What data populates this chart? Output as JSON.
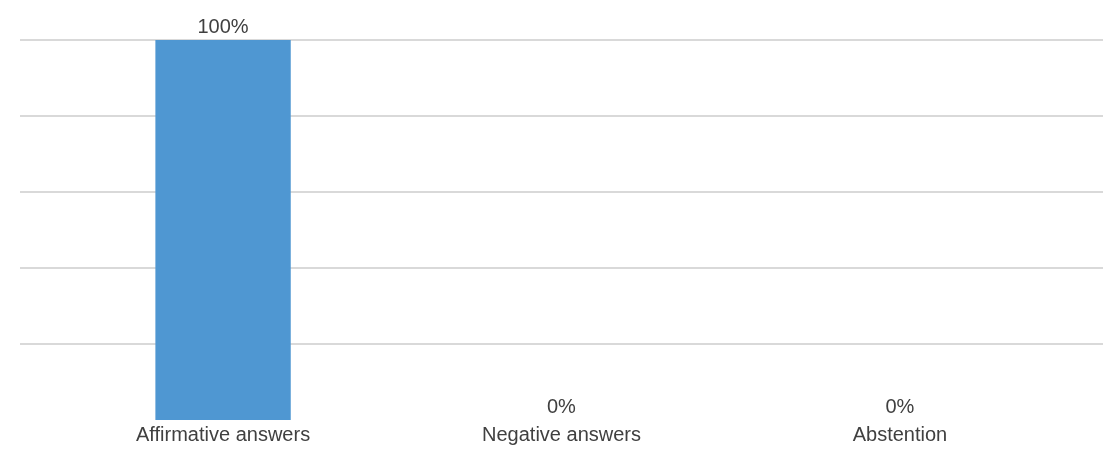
{
  "chart_data": {
    "type": "bar",
    "categories": [
      "Affirmative answers",
      "Negative answers",
      "Abstention"
    ],
    "values": [
      100,
      0,
      0
    ],
    "value_labels": [
      "100%",
      "0%",
      "0%"
    ],
    "color": "#4f97d2",
    "grid": "y",
    "tick_labels": "x"
  }
}
